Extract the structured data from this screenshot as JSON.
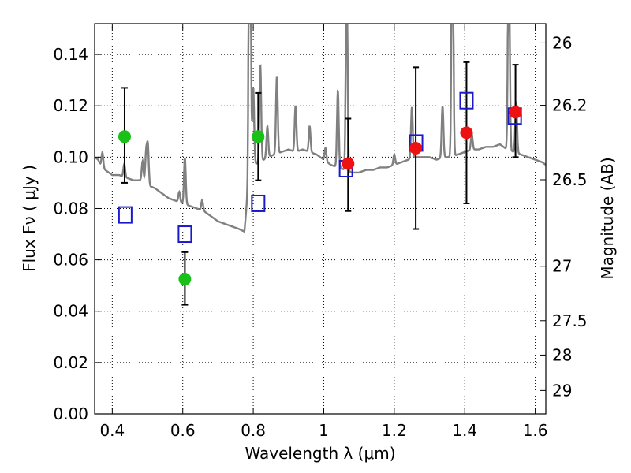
{
  "chart_data": {
    "type": "scatter",
    "xlabel": "Wavelength  λ (μm)",
    "ylabel": "Flux  Fν  ( μJy )",
    "ylabel_right": "Magnitude (AB)",
    "xlim": [
      0.35,
      1.63
    ],
    "ylim": [
      0.0,
      0.152
    ],
    "x_ticks": [
      0.4,
      0.6,
      0.8,
      1.0,
      1.2,
      1.4,
      1.6
    ],
    "x_tick_labels": [
      "0.4",
      "0.6",
      "0.8",
      "1",
      "1.2",
      "1.4",
      "1.6"
    ],
    "y_ticks": [
      0.0,
      0.02,
      0.04,
      0.06,
      0.08,
      0.1,
      0.12,
      0.14
    ],
    "y_tick_labels": [
      "0.00",
      "0.02",
      "0.04",
      "0.06",
      "0.08",
      "0.10",
      "0.12",
      "0.14"
    ],
    "right_ticks": [
      {
        "label": "26",
        "flux": 0.1445
      },
      {
        "label": "26.2",
        "flux": 0.1202
      },
      {
        "label": "26.5",
        "flux": 0.0912
      },
      {
        "label": "27",
        "flux": 0.0575
      },
      {
        "label": "27.5",
        "flux": 0.0363
      },
      {
        "label": "28",
        "flux": 0.0229
      },
      {
        "label": "29",
        "flux": 0.0091
      }
    ],
    "grid": true,
    "colors": {
      "spectrum": "#808080",
      "green_points": "#18c018",
      "red_points": "#ee1111",
      "model_boxes": "#1a1acc",
      "errorbars": "#000000"
    },
    "spectrum": {
      "continuum": [
        [
          0.35,
          0.1
        ],
        [
          0.36,
          0.099
        ],
        [
          0.37,
          0.096
        ],
        [
          0.38,
          0.095
        ],
        [
          0.39,
          0.094
        ],
        [
          0.4,
          0.093
        ],
        [
          0.42,
          0.093
        ],
        [
          0.44,
          0.092
        ],
        [
          0.46,
          0.091
        ],
        [
          0.48,
          0.091
        ],
        [
          0.5,
          0.089
        ],
        [
          0.52,
          0.088
        ],
        [
          0.54,
          0.086
        ],
        [
          0.56,
          0.084
        ],
        [
          0.58,
          0.083
        ],
        [
          0.6,
          0.082
        ],
        [
          0.62,
          0.081
        ],
        [
          0.64,
          0.08
        ],
        [
          0.66,
          0.079
        ],
        [
          0.68,
          0.077
        ],
        [
          0.7,
          0.075
        ],
        [
          0.72,
          0.074
        ],
        [
          0.74,
          0.073
        ],
        [
          0.76,
          0.072
        ],
        [
          0.775,
          0.071
        ],
        [
          0.79,
          0.096
        ],
        [
          0.8,
          0.097
        ],
        [
          0.82,
          0.098
        ],
        [
          0.84,
          0.1
        ],
        [
          0.86,
          0.101
        ],
        [
          0.88,
          0.102
        ],
        [
          0.9,
          0.103
        ],
        [
          0.92,
          0.102
        ],
        [
          0.94,
          0.103
        ],
        [
          0.96,
          0.102
        ],
        [
          0.98,
          0.101
        ],
        [
          1.0,
          0.099
        ],
        [
          1.02,
          0.097
        ],
        [
          1.04,
          0.096
        ],
        [
          1.06,
          0.095
        ],
        [
          1.08,
          0.094
        ],
        [
          1.1,
          0.094
        ],
        [
          1.12,
          0.095
        ],
        [
          1.14,
          0.095
        ],
        [
          1.16,
          0.096
        ],
        [
          1.18,
          0.096
        ],
        [
          1.2,
          0.097
        ],
        [
          1.22,
          0.098
        ],
        [
          1.24,
          0.099
        ],
        [
          1.26,
          0.1
        ],
        [
          1.28,
          0.1
        ],
        [
          1.3,
          0.1
        ],
        [
          1.32,
          0.099
        ],
        [
          1.34,
          0.1
        ],
        [
          1.36,
          0.1
        ],
        [
          1.38,
          0.101
        ],
        [
          1.4,
          0.102
        ],
        [
          1.42,
          0.103
        ],
        [
          1.44,
          0.103
        ],
        [
          1.46,
          0.104
        ],
        [
          1.48,
          0.104
        ],
        [
          1.5,
          0.105
        ],
        [
          1.52,
          0.103
        ],
        [
          1.54,
          0.102
        ],
        [
          1.56,
          0.101
        ],
        [
          1.58,
          0.1
        ],
        [
          1.6,
          0.099
        ],
        [
          1.62,
          0.098
        ],
        [
          1.63,
          0.097
        ]
      ],
      "lines": [
        [
          0.372,
          0.006
        ],
        [
          0.434,
          0.005
        ],
        [
          0.486,
          0.008
        ],
        [
          0.496,
          0.012
        ],
        [
          0.501,
          0.015
        ],
        [
          0.59,
          0.004
        ],
        [
          0.606,
          0.018
        ],
        [
          0.655,
          0.004
        ],
        [
          0.79,
          0.18
        ],
        [
          0.8,
          0.03
        ],
        [
          0.82,
          0.038
        ],
        [
          0.84,
          0.012
        ],
        [
          0.867,
          0.03
        ],
        [
          0.92,
          0.018
        ],
        [
          0.96,
          0.01
        ],
        [
          1.005,
          0.005
        ],
        [
          1.04,
          0.03
        ],
        [
          1.065,
          0.08
        ],
        [
          1.2,
          0.004
        ],
        [
          1.25,
          0.02
        ],
        [
          1.337,
          0.02
        ],
        [
          1.365,
          0.11
        ],
        [
          1.42,
          0.006
        ],
        [
          1.525,
          0.09
        ],
        [
          1.546,
          0.02
        ]
      ]
    },
    "points_green": [
      {
        "x": 0.435,
        "y": 0.108,
        "err_low": 0.09,
        "err_high": 0.127
      },
      {
        "x": 0.606,
        "y": 0.0525,
        "err_low": 0.0425,
        "err_high": 0.063
      },
      {
        "x": 0.814,
        "y": 0.108,
        "err_low": 0.091,
        "err_high": 0.125
      }
    ],
    "points_red": [
      {
        "x": 1.069,
        "y": 0.0975,
        "err_low": 0.079,
        "err_high": 0.115
      },
      {
        "x": 1.261,
        "y": 0.1035,
        "err_low": 0.072,
        "err_high": 0.135
      },
      {
        "x": 1.405,
        "y": 0.1095,
        "err_low": 0.082,
        "err_high": 0.137
      },
      {
        "x": 1.544,
        "y": 0.1175,
        "err_low": 0.1,
        "err_high": 0.136
      }
    ],
    "model_boxes": [
      {
        "x": 0.437,
        "y": 0.0775
      },
      {
        "x": 0.606,
        "y": 0.07
      },
      {
        "x": 0.814,
        "y": 0.082
      },
      {
        "x": 1.063,
        "y": 0.0955
      },
      {
        "x": 1.262,
        "y": 0.1055
      },
      {
        "x": 1.405,
        "y": 0.122
      },
      {
        "x": 1.542,
        "y": 0.116
      }
    ]
  }
}
